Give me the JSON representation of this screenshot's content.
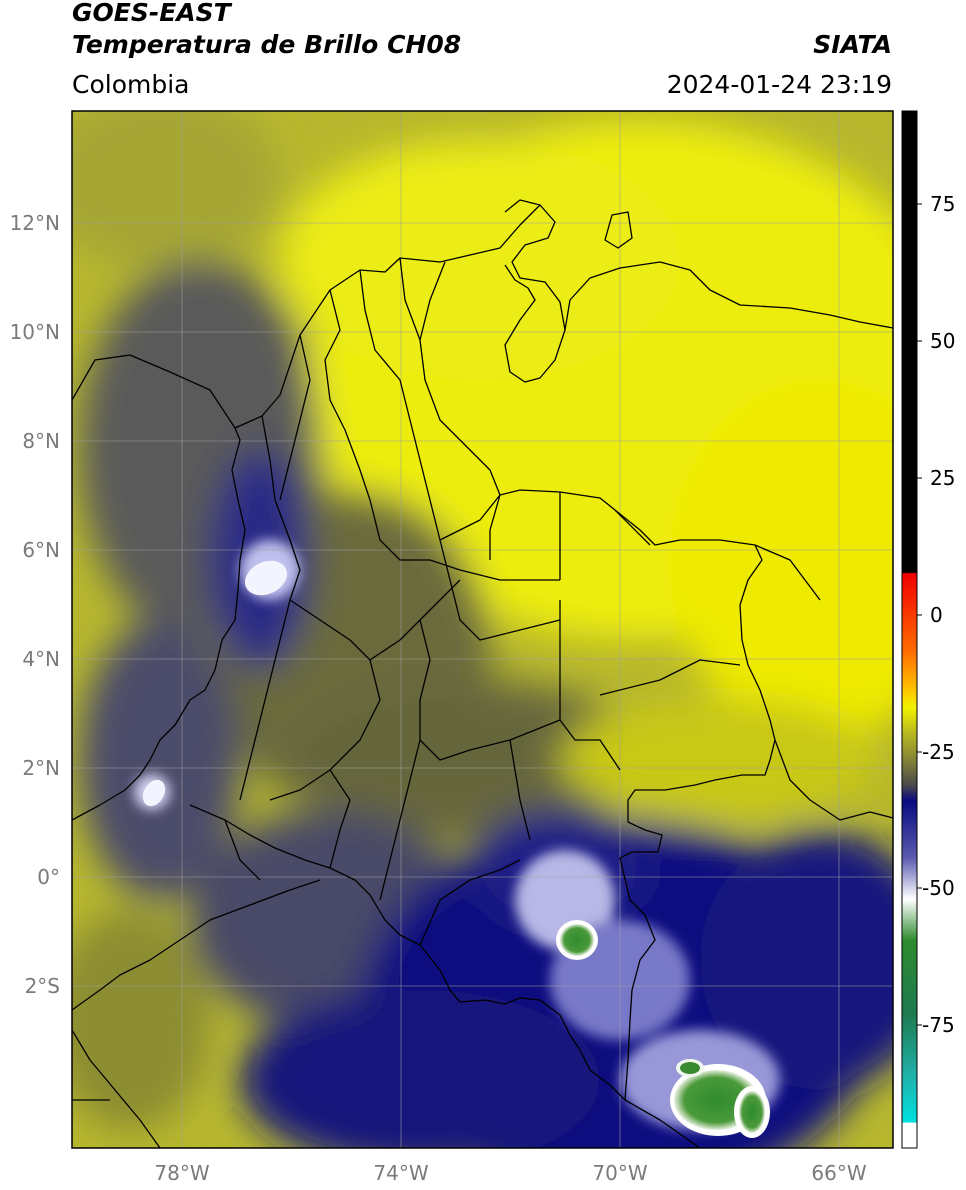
{
  "header": {
    "satellite": "GOES-EAST",
    "product": "Temperatura de Brillo CH08",
    "region": "Colombia",
    "agency": "SIATA",
    "datetime": "2024-01-24 23:19"
  },
  "map": {
    "lon_range": [
      -80,
      -65
    ],
    "lat_range": [
      -5,
      14
    ],
    "lat_ticks": [
      "12°N",
      "10°N",
      "8°N",
      "6°N",
      "4°N",
      "2°N",
      "0°",
      "2°S"
    ],
    "lon_ticks": [
      "78°W",
      "74°W",
      "70°W",
      "66°W"
    ]
  },
  "colorbar": {
    "ticks": [
      "75",
      "50",
      "25",
      "0",
      "-25",
      "-50",
      "-75"
    ],
    "colors": {
      "black": "#000000",
      "red": "#f00000",
      "orange": "#ff8c00",
      "yellow": "#f2f200",
      "olive": "#8c8c2a",
      "gray": "#4a4a4a",
      "navy": "#0a0a80",
      "white": "#ffffff",
      "green": "#2e8b2e",
      "teal": "#20b2aa",
      "cyan": "#00e0e0"
    }
  }
}
